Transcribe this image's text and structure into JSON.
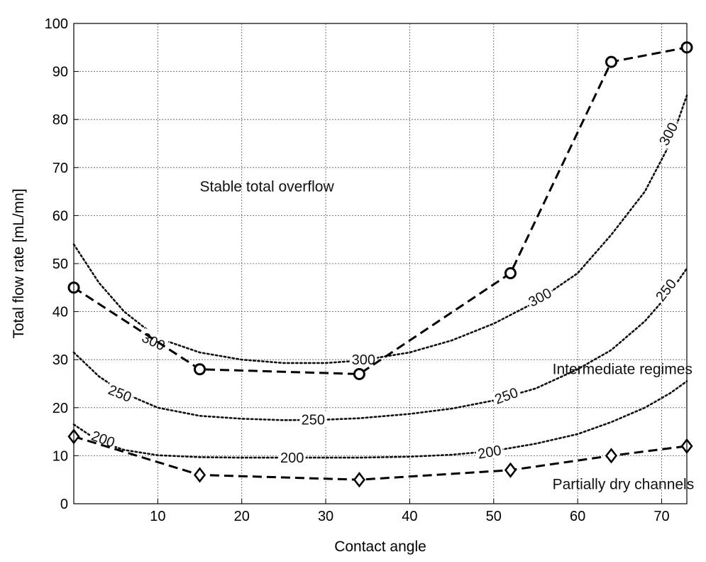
{
  "chart_data": {
    "type": "line",
    "xlabel": "Contact angle",
    "ylabel": "Total flow rate [mL/mn]",
    "xlim": [
      0,
      73
    ],
    "ylim": [
      0,
      100
    ],
    "xticks": [
      10,
      20,
      30,
      40,
      50,
      60,
      70
    ],
    "yticks": [
      0,
      10,
      20,
      30,
      40,
      50,
      60,
      70,
      80,
      90,
      100
    ],
    "grid": true,
    "series": [
      {
        "marker": "circle",
        "style": "dashed",
        "color": "#000000",
        "x": [
          0,
          15,
          34,
          52,
          64,
          73
        ],
        "y": [
          45,
          28,
          27,
          48,
          92,
          95
        ]
      },
      {
        "marker": "diamond",
        "style": "dashed",
        "color": "#000000",
        "x": [
          0,
          15,
          34,
          52,
          64,
          73
        ],
        "y": [
          14,
          6,
          5,
          7,
          10,
          12
        ]
      }
    ],
    "contours": [
      {
        "level": "300",
        "style": "dotted",
        "x": [
          0,
          3,
          6,
          10,
          15,
          20,
          25,
          30,
          34,
          40,
          45,
          50,
          55,
          60,
          64,
          68,
          71,
          73
        ],
        "y": [
          54,
          46,
          40,
          34.5,
          31.5,
          30,
          29.3,
          29.3,
          29.8,
          31.5,
          34,
          37.5,
          42,
          48,
          56,
          65,
          75,
          85
        ],
        "labels": [
          {
            "x": 9.5,
            "y": 33.8,
            "angle": 25
          },
          {
            "x": 34.5,
            "y": 30,
            "angle": 0
          },
          {
            "x": 55.5,
            "y": 43,
            "angle": -28
          },
          {
            "x": 70.8,
            "y": 77,
            "angle": -62
          }
        ]
      },
      {
        "level": "250",
        "style": "dotted",
        "x": [
          0,
          3,
          6,
          10,
          15,
          20,
          25,
          30,
          34,
          40,
          45,
          50,
          55,
          60,
          64,
          68,
          71,
          73
        ],
        "y": [
          31.5,
          26.5,
          23,
          20,
          18.3,
          17.7,
          17.4,
          17.5,
          17.8,
          18.7,
          19.8,
          21.5,
          24,
          28,
          32,
          38,
          44,
          49
        ],
        "labels": [
          {
            "x": 5.5,
            "y": 23,
            "angle": 22
          },
          {
            "x": 28.5,
            "y": 17.5,
            "angle": 0
          },
          {
            "x": 51.5,
            "y": 22.5,
            "angle": -20
          },
          {
            "x": 70.5,
            "y": 44.5,
            "angle": -52
          }
        ]
      },
      {
        "level": "200",
        "style": "dotted",
        "x": [
          0,
          3,
          6,
          10,
          15,
          20,
          25,
          30,
          34,
          40,
          45,
          50,
          55,
          60,
          64,
          68,
          71,
          73
        ],
        "y": [
          16.5,
          13,
          11.2,
          10.1,
          9.7,
          9.6,
          9.6,
          9.6,
          9.6,
          9.8,
          10.2,
          11,
          12.5,
          14.5,
          17,
          20,
          23,
          25.5
        ],
        "labels": [
          {
            "x": 3.5,
            "y": 13.5,
            "angle": 20
          },
          {
            "x": 26,
            "y": 9.6,
            "angle": 0
          },
          {
            "x": 49.5,
            "y": 10.8,
            "angle": -10
          }
        ]
      }
    ],
    "annotations": [
      {
        "text": "Stable total overflow",
        "x": 15,
        "y": 65
      },
      {
        "text": "Intermediate regimes",
        "x": 57,
        "y": 27
      },
      {
        "text": "Partially dry channels",
        "x": 57,
        "y": 3
      }
    ]
  }
}
